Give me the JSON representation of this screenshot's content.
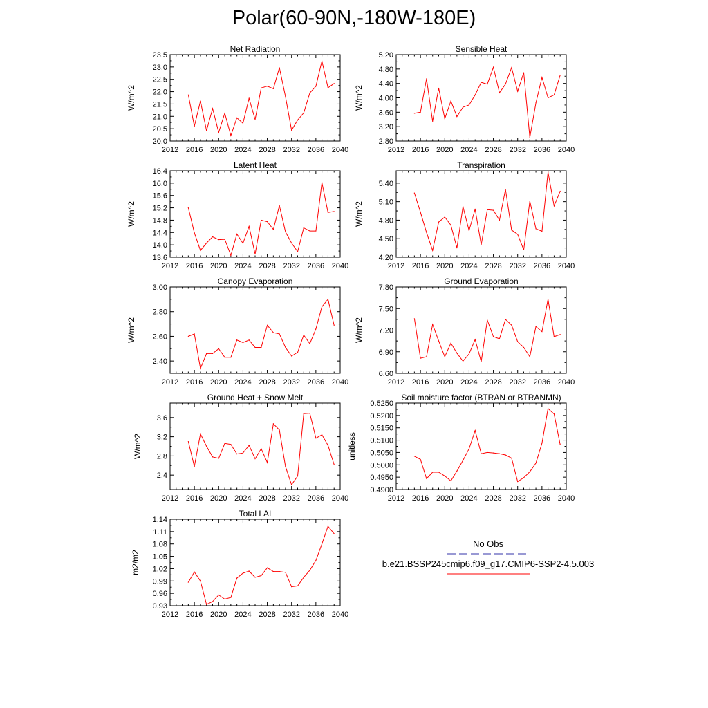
{
  "page": {
    "title": "Polar(60-90N,-180W-180E)"
  },
  "legend": {
    "obs_label": "No Obs",
    "obs_color": "#3333aa",
    "model_label": "b.e21.BSSP245cmip6.f09_g17.CMIP6-SSP2-4.5.003",
    "model_color": "#ff0000"
  },
  "chart_data": [
    {
      "type": "line",
      "title": "Net Radiation",
      "ylabel": "W/m^2",
      "xlim": [
        2012,
        2040
      ],
      "ylim": [
        20.0,
        23.5
      ],
      "xticks": [
        "2012",
        "2016",
        "2020",
        "2024",
        "2028",
        "2032",
        "2036",
        "2040"
      ],
      "yticks": [
        "20.0",
        "20.5",
        "21.0",
        "21.5",
        "22.0",
        "22.5",
        "23.0",
        "23.5"
      ],
      "series": [
        {
          "color": "#ff0000",
          "x": [
            2015,
            2016,
            2017,
            2018,
            2019,
            2020,
            2021,
            2022,
            2023,
            2024,
            2025,
            2026,
            2027,
            2028,
            2029,
            2030,
            2031,
            2032,
            2033,
            2034,
            2035,
            2036,
            2037,
            2038,
            2039
          ],
          "values": [
            21.87,
            20.6,
            21.62,
            20.42,
            21.32,
            20.35,
            21.13,
            20.22,
            20.94,
            20.72,
            21.73,
            20.87,
            22.15,
            22.22,
            22.12,
            22.97,
            21.8,
            20.44,
            20.85,
            21.14,
            21.95,
            22.22,
            23.24,
            22.16,
            22.33
          ]
        }
      ]
    },
    {
      "type": "line",
      "title": "Sensible Heat",
      "ylabel": "W/m^2",
      "xlim": [
        2012,
        2040
      ],
      "ylim": [
        2.8,
        5.2
      ],
      "xticks": [
        "2012",
        "2016",
        "2020",
        "2024",
        "2028",
        "2032",
        "2036",
        "2040"
      ],
      "yticks": [
        "2.80",
        "3.20",
        "3.60",
        "4.00",
        "4.40",
        "4.80",
        "5.20"
      ],
      "series": [
        {
          "color": "#ff0000",
          "x": [
            2015,
            2016,
            2017,
            2018,
            2019,
            2020,
            2021,
            2022,
            2023,
            2024,
            2025,
            2026,
            2027,
            2028,
            2029,
            2030,
            2031,
            2032,
            2033,
            2034,
            2035,
            2036,
            2037,
            2038,
            2039
          ],
          "values": [
            3.57,
            3.6,
            4.53,
            3.35,
            4.27,
            3.42,
            3.91,
            3.48,
            3.74,
            3.8,
            4.08,
            4.43,
            4.38,
            4.85,
            4.14,
            4.38,
            4.84,
            4.18,
            4.7,
            2.9,
            3.86,
            4.57,
            4.0,
            4.08,
            4.63
          ]
        }
      ]
    },
    {
      "type": "line",
      "title": "Latent Heat",
      "ylabel": "W/m^2",
      "xlim": [
        2012,
        2040
      ],
      "ylim": [
        13.6,
        16.4
      ],
      "xticks": [
        "2012",
        "2016",
        "2020",
        "2024",
        "2028",
        "2032",
        "2036",
        "2040"
      ],
      "yticks": [
        "13.6",
        "14.0",
        "14.4",
        "14.8",
        "15.2",
        "15.6",
        "16.0",
        "16.4"
      ],
      "series": [
        {
          "color": "#ff0000",
          "x": [
            2015,
            2016,
            2017,
            2018,
            2019,
            2020,
            2021,
            2022,
            2023,
            2024,
            2025,
            2026,
            2027,
            2028,
            2029,
            2030,
            2031,
            2032,
            2033,
            2034,
            2035,
            2036,
            2037,
            2038,
            2039
          ],
          "values": [
            15.2,
            14.39,
            13.82,
            14.06,
            14.26,
            14.17,
            14.18,
            13.66,
            14.35,
            14.05,
            14.6,
            13.7,
            14.8,
            14.75,
            14.5,
            15.27,
            14.42,
            14.06,
            13.78,
            14.55,
            14.45,
            14.45,
            16.02,
            15.05,
            15.08
          ]
        }
      ]
    },
    {
      "type": "line",
      "title": "Transpiration",
      "ylabel": "W/m^2",
      "xlim": [
        2012,
        2040
      ],
      "ylim": [
        4.2,
        5.6
      ],
      "xticks": [
        "2012",
        "2016",
        "2020",
        "2024",
        "2028",
        "2032",
        "2036",
        "2040"
      ],
      "yticks": [
        "4.20",
        "4.50",
        "4.80",
        "5.10",
        "5.40"
      ],
      "series": [
        {
          "color": "#ff0000",
          "x": [
            2015,
            2016,
            2017,
            2018,
            2019,
            2020,
            2021,
            2022,
            2023,
            2024,
            2025,
            2026,
            2027,
            2028,
            2029,
            2030,
            2031,
            2032,
            2033,
            2034,
            2035,
            2036,
            2037,
            2038,
            2039
          ],
          "values": [
            5.24,
            4.93,
            4.6,
            4.31,
            4.77,
            4.85,
            4.72,
            4.35,
            5.02,
            4.63,
            4.98,
            4.4,
            4.97,
            4.96,
            4.8,
            5.3,
            4.64,
            4.57,
            4.32,
            5.11,
            4.66,
            4.62,
            5.58,
            5.03,
            5.27
          ]
        }
      ]
    },
    {
      "type": "line",
      "title": "Canopy Evaporation",
      "ylabel": "W/m^2",
      "xlim": [
        2012,
        2040
      ],
      "ylim": [
        2.3,
        3.0
      ],
      "xticks": [
        "2012",
        "2016",
        "2020",
        "2024",
        "2028",
        "2032",
        "2036",
        "2040"
      ],
      "yticks": [
        "2.40",
        "2.60",
        "2.80",
        "3.00"
      ],
      "series": [
        {
          "color": "#ff0000",
          "x": [
            2015,
            2016,
            2017,
            2018,
            2019,
            2020,
            2021,
            2022,
            2023,
            2024,
            2025,
            2026,
            2027,
            2028,
            2029,
            2030,
            2031,
            2032,
            2033,
            2034,
            2035,
            2036,
            2037,
            2038,
            2039
          ],
          "values": [
            2.6,
            2.62,
            2.34,
            2.46,
            2.46,
            2.5,
            2.43,
            2.43,
            2.57,
            2.55,
            2.57,
            2.51,
            2.51,
            2.69,
            2.63,
            2.62,
            2.51,
            2.44,
            2.47,
            2.61,
            2.54,
            2.66,
            2.84,
            2.9,
            2.69
          ]
        }
      ]
    },
    {
      "type": "line",
      "title": "Ground Evaporation",
      "ylabel": "W/m^2",
      "xlim": [
        2012,
        2040
      ],
      "ylim": [
        6.6,
        7.8
      ],
      "xticks": [
        "2012",
        "2016",
        "2020",
        "2024",
        "2028",
        "2032",
        "2036",
        "2040"
      ],
      "yticks": [
        "6.60",
        "6.90",
        "7.20",
        "7.50",
        "7.80"
      ],
      "series": [
        {
          "color": "#ff0000",
          "x": [
            2015,
            2016,
            2017,
            2018,
            2019,
            2020,
            2021,
            2022,
            2023,
            2024,
            2025,
            2026,
            2027,
            2028,
            2029,
            2030,
            2031,
            2032,
            2033,
            2034,
            2035,
            2036,
            2037,
            2038,
            2039
          ],
          "values": [
            7.36,
            6.81,
            6.83,
            7.28,
            7.05,
            6.83,
            7.02,
            6.88,
            6.77,
            6.87,
            7.07,
            6.76,
            7.34,
            7.11,
            7.08,
            7.35,
            7.27,
            7.04,
            6.96,
            6.83,
            7.25,
            7.18,
            7.63,
            7.11,
            7.14
          ]
        }
      ]
    },
    {
      "type": "line",
      "title": "Ground Heat + Snow Melt",
      "ylabel": "W/m^2",
      "xlim": [
        2012,
        2040
      ],
      "ylim": [
        2.1,
        3.9
      ],
      "xticks": [
        "2012",
        "2016",
        "2020",
        "2024",
        "2028",
        "2032",
        "2036",
        "2040"
      ],
      "yticks": [
        "2.4",
        "2.8",
        "3.2",
        "3.6"
      ],
      "series": [
        {
          "color": "#ff0000",
          "x": [
            2015,
            2016,
            2017,
            2018,
            2019,
            2020,
            2021,
            2022,
            2023,
            2024,
            2025,
            2026,
            2027,
            2028,
            2029,
            2030,
            2031,
            2032,
            2033,
            2034,
            2035,
            2036,
            2037,
            2038,
            2039
          ],
          "values": [
            3.1,
            2.58,
            3.26,
            3.0,
            2.78,
            2.75,
            3.06,
            3.04,
            2.84,
            2.86,
            3.02,
            2.74,
            2.95,
            2.66,
            3.47,
            3.34,
            2.58,
            2.2,
            2.38,
            3.68,
            3.69,
            3.17,
            3.24,
            3.02,
            2.62
          ]
        }
      ]
    },
    {
      "type": "line",
      "title": "Soil moisture factor (BTRAN or BTRANMN)",
      "ylabel": "unitless",
      "xlim": [
        2012,
        2040
      ],
      "ylim": [
        0.49,
        0.525
      ],
      "xticks": [
        "2012",
        "2016",
        "2020",
        "2024",
        "2028",
        "2032",
        "2036",
        "2040"
      ],
      "yticks": [
        "0.4900",
        "0.4950",
        "0.5000",
        "0.5050",
        "0.5100",
        "0.5150",
        "0.5200",
        "0.5250"
      ],
      "series": [
        {
          "color": "#ff0000",
          "x": [
            2015,
            2016,
            2017,
            2018,
            2019,
            2020,
            2021,
            2022,
            2023,
            2024,
            2025,
            2026,
            2027,
            2028,
            2029,
            2030,
            2031,
            2032,
            2033,
            2034,
            2035,
            2036,
            2037,
            2038,
            2039
          ],
          "values": [
            0.5035,
            0.5022,
            0.4944,
            0.497,
            0.497,
            0.4955,
            0.4935,
            0.4975,
            0.5018,
            0.5065,
            0.5139,
            0.5045,
            0.505,
            0.5048,
            0.5045,
            0.504,
            0.5027,
            0.4932,
            0.4948,
            0.4972,
            0.5007,
            0.5088,
            0.5228,
            0.5206,
            0.5082
          ]
        }
      ]
    },
    {
      "type": "line",
      "title": "Total LAI",
      "ylabel": "m2/m2",
      "xlim": [
        2012,
        2040
      ],
      "ylim": [
        0.93,
        1.14
      ],
      "xticks": [
        "2012",
        "2016",
        "2020",
        "2024",
        "2028",
        "2032",
        "2036",
        "2040"
      ],
      "yticks": [
        "0.93",
        "0.96",
        "0.99",
        "1.02",
        "1.05",
        "1.08",
        "1.11",
        "1.14"
      ],
      "series": [
        {
          "color": "#ff0000",
          "x": [
            2015,
            2016,
            2017,
            2018,
            2019,
            2020,
            2021,
            2022,
            2023,
            2024,
            2025,
            2026,
            2027,
            2028,
            2029,
            2030,
            2031,
            2032,
            2033,
            2034,
            2035,
            2036,
            2037,
            2038,
            2039
          ],
          "values": [
            0.987,
            1.012,
            0.99,
            0.933,
            0.94,
            0.956,
            0.946,
            0.95,
            0.997,
            1.009,
            1.014,
            0.999,
            1.003,
            1.022,
            1.013,
            1.013,
            1.011,
            0.976,
            0.978,
            0.999,
            1.016,
            1.04,
            1.08,
            1.123,
            1.105
          ]
        }
      ]
    }
  ]
}
